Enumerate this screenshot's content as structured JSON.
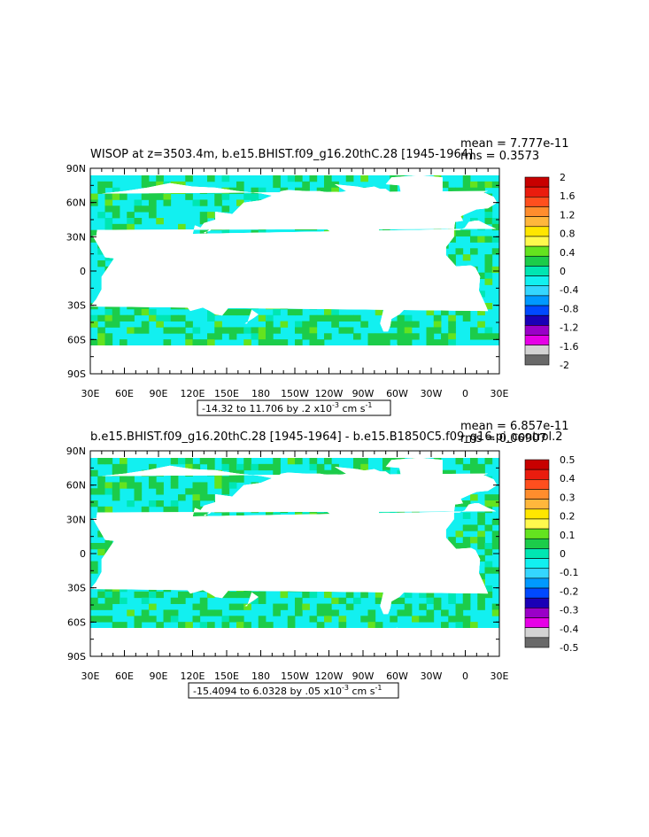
{
  "chart_data": [
    {
      "type": "heatmap",
      "title": "WISOP at z=3503.4m, b.e15.BHIST.f09_g16.20thC.28 [1945-1964]",
      "mean_text": "mean = 7.777e-11",
      "rms_text": "rms = 0.3573",
      "yticks": [
        "90N",
        "60N",
        "30N",
        "0",
        "30S",
        "60S",
        "90S"
      ],
      "xticks": [
        "30E",
        "60E",
        "90E",
        "120E",
        "150E",
        "180",
        "150W",
        "120W",
        "90W",
        "60W",
        "30W",
        "0",
        "30E"
      ],
      "range_label_parts": [
        "-14.32 to 11.706 by .2 x10",
        "-3",
        " cm s",
        "-1"
      ],
      "colorbar_labels": [
        "2",
        "1.6",
        "1.2",
        "0.8",
        "0.4",
        "0",
        "-0.4",
        "-0.8",
        "-1.2",
        "-1.6",
        "-2"
      ],
      "colorbar_colors": [
        "#c80000",
        "#ea1c0e",
        "#ff4f1e",
        "#ff8d2d",
        "#ffb73c",
        "#ffe600",
        "#fff94d",
        "#64e31f",
        "#1ccc4a",
        "#00e6b2",
        "#12f0f0",
        "#34d6ff",
        "#0099ff",
        "#0049ff",
        "#1a00b6",
        "#9a00c8",
        "#e600e6",
        "#d3d3d3",
        "#696969"
      ],
      "field_colors": [
        "#12f0f0",
        "#1ccc4a",
        "#64e31f",
        "#00e6b2"
      ]
    },
    {
      "type": "heatmap",
      "title": "b.e15.BHIST.f09_g16.20thC.28 [1945-1964] - b.e15.B1850C5.f09_g16.pi_control.2",
      "mean_text": "mean = 6.857e-11",
      "rms_text": "rms = 0.06907",
      "yticks": [
        "90N",
        "60N",
        "30N",
        "0",
        "30S",
        "60S",
        "90S"
      ],
      "xticks": [
        "30E",
        "60E",
        "90E",
        "120E",
        "150E",
        "180",
        "150W",
        "120W",
        "90W",
        "60W",
        "30W",
        "0",
        "30E"
      ],
      "range_label_parts": [
        "-15.4094 to 6.0328 by .05 x10",
        "-3",
        " cm s",
        "-1"
      ],
      "colorbar_labels": [
        "0.5",
        "0.4",
        "0.3",
        "0.2",
        "0.1",
        "0",
        "-0.1",
        "-0.2",
        "-0.3",
        "-0.4",
        "-0.5"
      ],
      "colorbar_colors": [
        "#c80000",
        "#ea1c0e",
        "#ff4f1e",
        "#ff8d2d",
        "#ffb73c",
        "#ffe600",
        "#fff94d",
        "#64e31f",
        "#1ccc4a",
        "#00e6b2",
        "#12f0f0",
        "#34d6ff",
        "#0099ff",
        "#0049ff",
        "#1a00b6",
        "#9a00c8",
        "#e600e6",
        "#d3d3d3",
        "#696969"
      ],
      "field_colors": [
        "#12f0f0",
        "#1ccc4a",
        "#64e31f",
        "#00e6b2"
      ]
    }
  ]
}
